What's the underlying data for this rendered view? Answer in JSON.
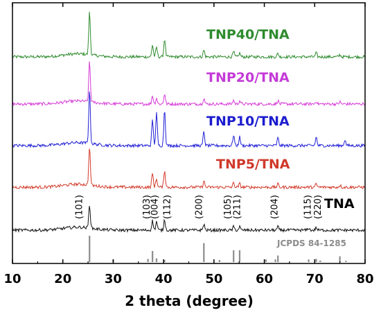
{
  "chart_data": {
    "type": "line",
    "title": "",
    "xlabel": "2 theta (degree)",
    "ylabel": "",
    "xlim": [
      10,
      80
    ],
    "xticks": [
      "10",
      "20",
      "30",
      "40",
      "50",
      "60",
      "70",
      "80"
    ],
    "y_axis_shown": false,
    "grid": false,
    "series": [
      {
        "name": "TNP40/TNA",
        "color": "#2e8b2e",
        "label_color": "#2e8b2e"
      },
      {
        "name": "TNP20/TNA",
        "color": "#d63bd6",
        "label_color": "#c43ad8"
      },
      {
        "name": "TNP10/TNA",
        "color": "#1f1fd6",
        "label_color": "#1c1ccf"
      },
      {
        "name": "TNP5/TNA",
        "color": "#d23a2a",
        "label_color": "#d0392b"
      },
      {
        "name": "TNA",
        "color": "#111111",
        "label_color": "#000000"
      }
    ],
    "peaks": {
      "TNP40/TNA": [
        [
          25.3,
          1.0
        ],
        [
          37.8,
          0.28
        ],
        [
          38.6,
          0.22
        ],
        [
          40.2,
          0.42
        ],
        [
          48.0,
          0.16
        ],
        [
          53.9,
          0.12
        ],
        [
          55.1,
          0.09
        ],
        [
          62.7,
          0.08
        ],
        [
          70.3,
          0.09
        ],
        [
          75.0,
          0.05
        ]
      ],
      "TNP20/TNA": [
        [
          25.3,
          0.95
        ],
        [
          37.8,
          0.2
        ],
        [
          38.6,
          0.14
        ],
        [
          40.2,
          0.24
        ],
        [
          48.0,
          0.14
        ],
        [
          53.9,
          0.09
        ],
        [
          55.1,
          0.08
        ],
        [
          62.7,
          0.08
        ],
        [
          70.3,
          0.07
        ],
        [
          75.0,
          0.05
        ]
      ],
      "TNP10/TNA": [
        [
          25.3,
          1.25
        ],
        [
          37.8,
          0.6
        ],
        [
          38.6,
          0.75
        ],
        [
          40.2,
          0.85
        ],
        [
          48.0,
          0.32
        ],
        [
          53.9,
          0.25
        ],
        [
          55.1,
          0.2
        ],
        [
          62.7,
          0.18
        ],
        [
          70.3,
          0.2
        ],
        [
          76.0,
          0.14
        ]
      ],
      "TNP5/TNA": [
        [
          25.3,
          0.9
        ],
        [
          37.8,
          0.32
        ],
        [
          38.6,
          0.2
        ],
        [
          40.2,
          0.4
        ],
        [
          48.0,
          0.14
        ],
        [
          53.9,
          0.1
        ],
        [
          55.1,
          0.08
        ],
        [
          62.7,
          0.07
        ],
        [
          70.3,
          0.07
        ],
        [
          75.0,
          0.05
        ]
      ],
      "TNA": [
        [
          25.3,
          0.55
        ],
        [
          37.8,
          0.22
        ],
        [
          38.6,
          0.2
        ],
        [
          40.2,
          0.25
        ],
        [
          48.0,
          0.14
        ],
        [
          53.9,
          0.08
        ],
        [
          55.1,
          0.08
        ],
        [
          62.7,
          0.08
        ],
        [
          68.8,
          0.05
        ],
        [
          70.3,
          0.06
        ]
      ]
    },
    "reference": {
      "name": "JCPDS 84-1285",
      "color": "#8c8c8c",
      "lines": [
        {
          "x": 25.3,
          "intensity": 100
        },
        {
          "x": 30.0,
          "intensity": 10
        },
        {
          "x": 36.9,
          "intensity": 12
        },
        {
          "x": 37.8,
          "intensity": 42
        },
        {
          "x": 38.6,
          "intensity": 14
        },
        {
          "x": 40.2,
          "intensity": 8
        },
        {
          "x": 48.0,
          "intensity": 72
        },
        {
          "x": 51.1,
          "intensity": 8
        },
        {
          "x": 53.9,
          "intensity": 45
        },
        {
          "x": 55.1,
          "intensity": 45
        },
        {
          "x": 60.3,
          "intensity": 10
        },
        {
          "x": 62.2,
          "intensity": 10
        },
        {
          "x": 62.7,
          "intensity": 25
        },
        {
          "x": 68.8,
          "intensity": 10
        },
        {
          "x": 70.3,
          "intensity": 12
        },
        {
          "x": 71.1,
          "intensity": 6
        },
        {
          "x": 75.0,
          "intensity": 22
        },
        {
          "x": 76.2,
          "intensity": 5
        }
      ]
    },
    "annotations": [
      {
        "text": "(101)",
        "x": 23.8
      },
      {
        "text": "(103)",
        "x": 37.2
      },
      {
        "text": "(004)",
        "x": 38.8
      },
      {
        "text": "(112)",
        "x": 41.3
      },
      {
        "text": "(200)",
        "x": 47.6
      },
      {
        "text": "(105)",
        "x": 53.3
      },
      {
        "text": "(211)",
        "x": 55.2
      },
      {
        "text": "(204)",
        "x": 62.6
      },
      {
        "text": "(115)",
        "x": 69.2
      },
      {
        "text": "(220)",
        "x": 71.2
      }
    ]
  }
}
